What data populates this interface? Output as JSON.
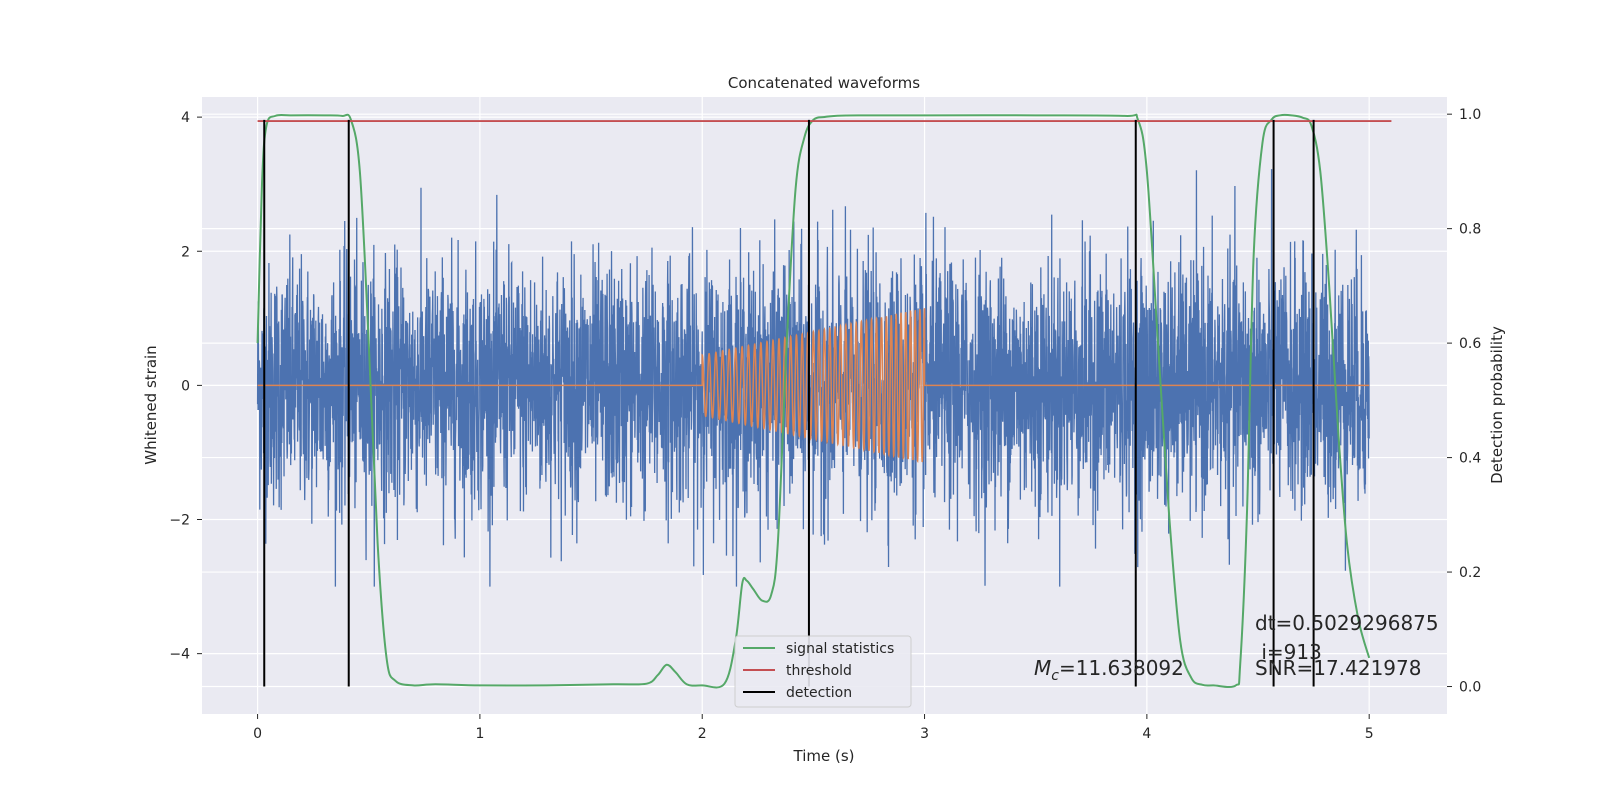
{
  "chart_data": {
    "type": "line",
    "title": "Concatenated waveforms",
    "xlabel": "Time (s)",
    "ylabel": "Whitened strain",
    "y2label": "Detection probability",
    "xlim": [
      -0.25,
      5.35
    ],
    "ylim": [
      -4.9,
      4.3
    ],
    "y2lim": [
      -0.048,
      1.03
    ],
    "xticks": [
      0,
      1,
      2,
      3,
      4,
      5
    ],
    "yticks": [
      -4,
      -2,
      0,
      2,
      4
    ],
    "y2ticks": [
      0.0,
      0.2,
      0.4,
      0.6,
      0.8,
      1.0
    ],
    "y2tick_labels": [
      "0.0",
      "0.2",
      "0.4",
      "0.6",
      "0.8",
      "1.0"
    ],
    "grid": true,
    "legend_position": "lower-center",
    "colors": {
      "strain": "#4c72b0",
      "waveform": "#dd8452",
      "signal_statistics": "#55a868",
      "threshold": "#c44e52",
      "detection": "#000000",
      "plot_background": "#eaeaf2",
      "grid": "#ffffff"
    },
    "series": [
      {
        "name": "strain",
        "axis": "left",
        "x_range": [
          0,
          5
        ],
        "envelope": [
          -3.0,
          3.4
        ],
        "typical_std": 0.9
      },
      {
        "name": "waveform",
        "axis": "left",
        "x_start": 2.0,
        "x_end": 3.0,
        "amplitude_start": 0.45,
        "amplitude_end": 1.15,
        "cycles": 40
      },
      {
        "name": "signal statistics",
        "axis": "right",
        "x": [
          0.0,
          0.02,
          0.04,
          0.08,
          0.15,
          0.3,
          0.38,
          0.42,
          0.46,
          0.5,
          0.54,
          0.58,
          0.62,
          0.7,
          0.8,
          1.0,
          1.3,
          1.6,
          1.75,
          1.8,
          1.84,
          1.88,
          1.93,
          2.0,
          2.1,
          2.15,
          2.18,
          2.2,
          2.23,
          2.27,
          2.31,
          2.34,
          2.38,
          2.42,
          2.46,
          2.5,
          2.55,
          2.6,
          2.7,
          3.0,
          3.5,
          3.9,
          3.96,
          4.0,
          4.05,
          4.1,
          4.15,
          4.2,
          4.25,
          4.3,
          4.4,
          4.42,
          4.45,
          4.48,
          4.52,
          4.56,
          4.6,
          4.65,
          4.7,
          4.74,
          4.78,
          4.82,
          4.86,
          4.9,
          4.95,
          5.0
        ],
        "values": [
          0.6,
          0.88,
          0.98,
          0.997,
          0.998,
          0.998,
          0.997,
          0.99,
          0.9,
          0.6,
          0.25,
          0.05,
          0.01,
          0.002,
          0.004,
          0.002,
          0.002,
          0.004,
          0.005,
          0.02,
          0.038,
          0.025,
          0.004,
          0.002,
          0.005,
          0.08,
          0.18,
          0.185,
          0.17,
          0.15,
          0.16,
          0.25,
          0.6,
          0.87,
          0.96,
          0.99,
          0.995,
          0.997,
          0.998,
          0.998,
          0.998,
          0.997,
          0.99,
          0.9,
          0.6,
          0.3,
          0.08,
          0.015,
          0.003,
          0.002,
          0.002,
          0.04,
          0.3,
          0.75,
          0.95,
          0.99,
          0.998,
          0.998,
          0.994,
          0.98,
          0.9,
          0.7,
          0.45,
          0.25,
          0.12,
          0.05
        ]
      },
      {
        "name": "threshold",
        "axis": "right",
        "x": [
          0.0,
          5.1
        ],
        "values": [
          0.988,
          0.988
        ]
      },
      {
        "name": "detection",
        "axis": "right",
        "x": [
          0.03,
          0.41,
          2.48,
          3.95,
          4.57,
          4.75
        ],
        "values": [
          0.99,
          0.99,
          0.99,
          0.99,
          0.99,
          0.99
        ],
        "y_bottom": 0.0
      }
    ],
    "legend": {
      "entries": [
        {
          "label": "signal statistics",
          "color": "#55a868"
        },
        {
          "label": "threshold",
          "color": "#c44e52"
        },
        {
          "label": "detection",
          "color": "#000000"
        }
      ]
    },
    "annotations": {
      "mc_symbol": "M",
      "mc_subscript": "c",
      "mc_value": "=11.638092",
      "dt": "dt=0.5029296875",
      "i": " i=913",
      "snr": "SNR=17.421978"
    }
  }
}
